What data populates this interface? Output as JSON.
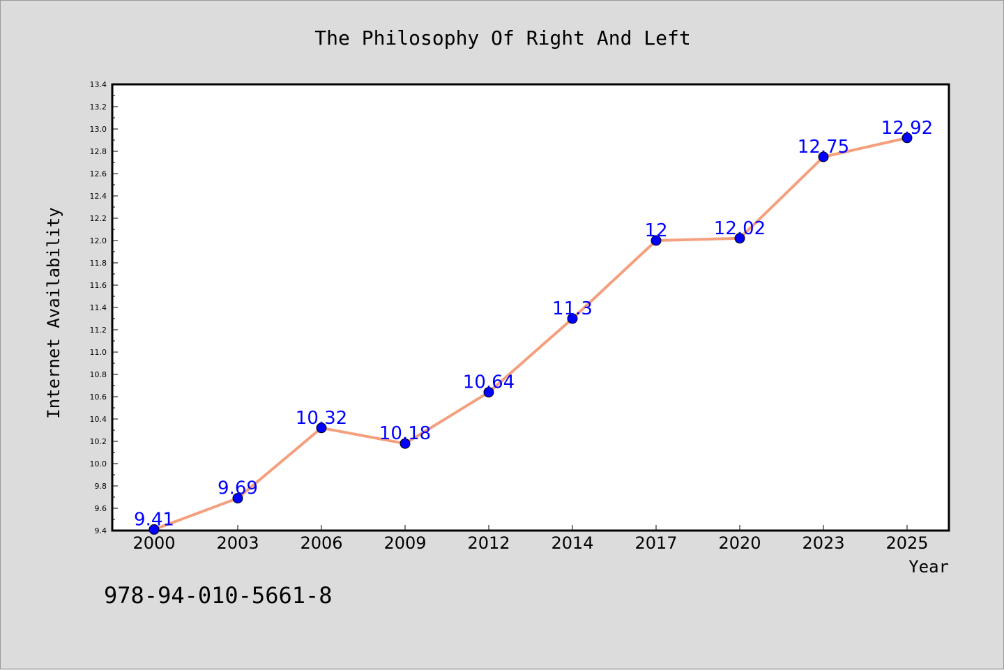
{
  "chart_data": {
    "type": "line",
    "title": "The Philosophy Of Right And Left",
    "xlabel": "Year",
    "ylabel": "Internet Availability",
    "categories": [
      "2000",
      "2003",
      "2006",
      "2009",
      "2012",
      "2014",
      "2017",
      "2020",
      "2023",
      "2025"
    ],
    "values": [
      9.41,
      9.69,
      10.32,
      10.18,
      10.64,
      11.3,
      12,
      12.02,
      12.75,
      12.92
    ],
    "data_labels": [
      "9.41",
      "9.69",
      "10.32",
      "10.18",
      "10.64",
      "11.3",
      "12",
      "12.02",
      "12.75",
      "12.92"
    ],
    "ylim": [
      9.4,
      13.4
    ],
    "yticks": [
      "9.4",
      "9.6",
      "9.8",
      "10.0",
      "10.2",
      "10.4",
      "10.6",
      "10.8",
      "11.0",
      "11.2",
      "11.4",
      "11.6",
      "11.8",
      "12.0",
      "12.2",
      "12.4",
      "12.6",
      "12.8",
      "13.0",
      "13.2",
      "13.4"
    ],
    "grid": false,
    "legend": "none",
    "colors": {
      "line": "#f4a07e",
      "marker": "#0000ff",
      "label": "#0000ff"
    }
  },
  "footer_text": "978-94-010-5661-8"
}
